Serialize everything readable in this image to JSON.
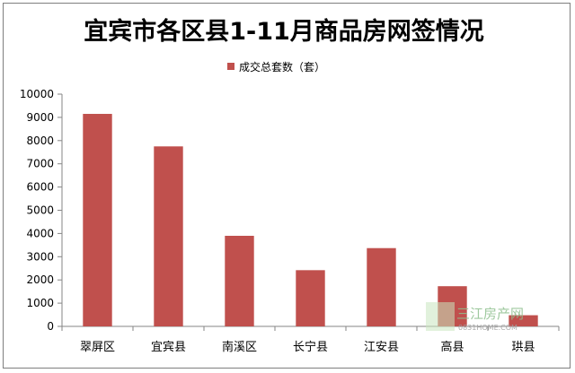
{
  "chart_data": {
    "type": "bar",
    "title": "宜宾市各区县1-11月商品房网签情况",
    "categories": [
      "翠屏区",
      "宜宾县",
      "南溪区",
      "长宁县",
      "江安县",
      "高县",
      "珙县"
    ],
    "series": [
      {
        "name": "成交总套数（套）",
        "values": [
          9150,
          7750,
          3900,
          2420,
          3370,
          1730,
          480
        ],
        "color": "#c0504d"
      }
    ],
    "ylim": [
      0,
      10000
    ],
    "yticks": [
      0,
      1000,
      2000,
      3000,
      4000,
      5000,
      6000,
      7000,
      8000,
      9000,
      10000
    ],
    "grid": false,
    "legend_position": "top"
  },
  "watermark": {
    "brand": "三江房产网",
    "url": "0831HOME.COM"
  }
}
